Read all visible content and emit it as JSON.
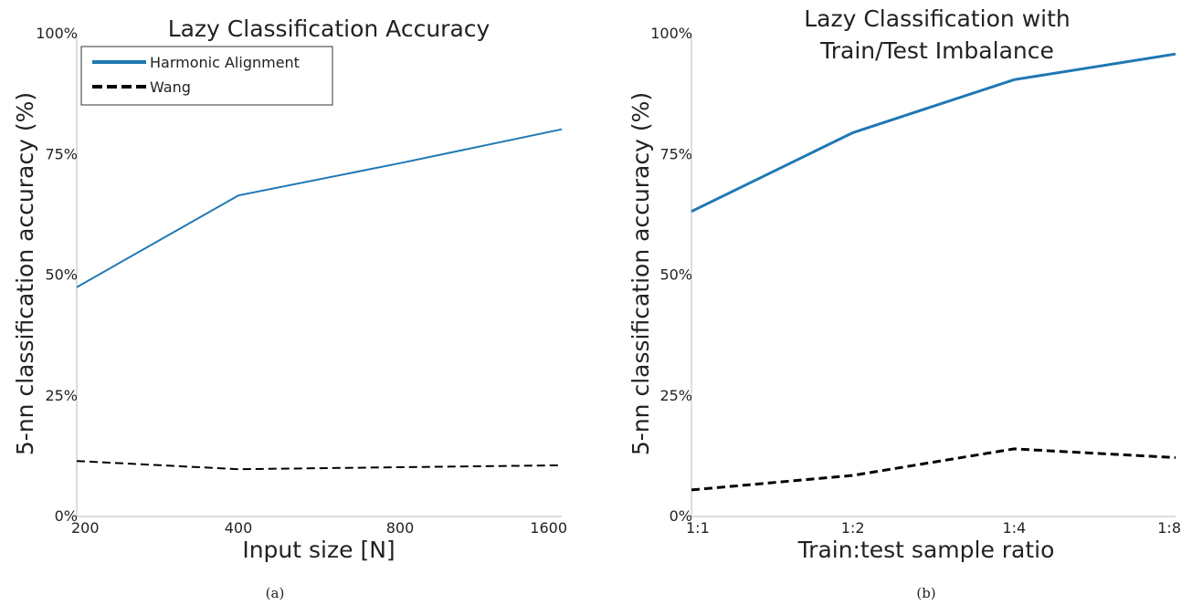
{
  "chart_data": [
    {
      "type": "line",
      "title": "Lazy Classification Accuracy",
      "xlabel": "Input size [N]",
      "ylabel": "5-nn classification accuracy (%)",
      "x_categories": [
        "200",
        "400",
        "800",
        "1600"
      ],
      "y_ticks": [
        "0%",
        "25%",
        "50%",
        "75%",
        "100%"
      ],
      "ylim": [
        0,
        100
      ],
      "grid": false,
      "legend_position": "top-left",
      "series": [
        {
          "name": "Harmonic Alignment",
          "style": "solid",
          "color": "#1f77b4",
          "values": [
            47.5,
            66.5,
            73.2,
            80.2
          ]
        },
        {
          "name": "Wang",
          "style": "dashed",
          "color": "#000000",
          "values": [
            11.5,
            9.8,
            10.2,
            10.6
          ]
        }
      ],
      "caption": "(a)"
    },
    {
      "type": "line",
      "title_lines": [
        "Lazy Classification with",
        "Train/Test Imbalance"
      ],
      "xlabel": "Train:test sample ratio",
      "ylabel": "5-nn classification accuracy (%)",
      "x_categories": [
        "1:1",
        "1:2",
        "1:4",
        "1:8"
      ],
      "y_ticks": [
        "0%",
        "25%",
        "50%",
        "75%",
        "100%"
      ],
      "ylim": [
        0,
        100
      ],
      "grid": false,
      "series": [
        {
          "style": "solid",
          "color": "#1f77b4",
          "values": [
            63.2,
            79.5,
            90.5,
            95.8
          ]
        },
        {
          "style": "dashed",
          "color": "#000000",
          "values": [
            5.5,
            8.5,
            14.0,
            12.2
          ]
        }
      ],
      "caption": "(b)"
    }
  ]
}
